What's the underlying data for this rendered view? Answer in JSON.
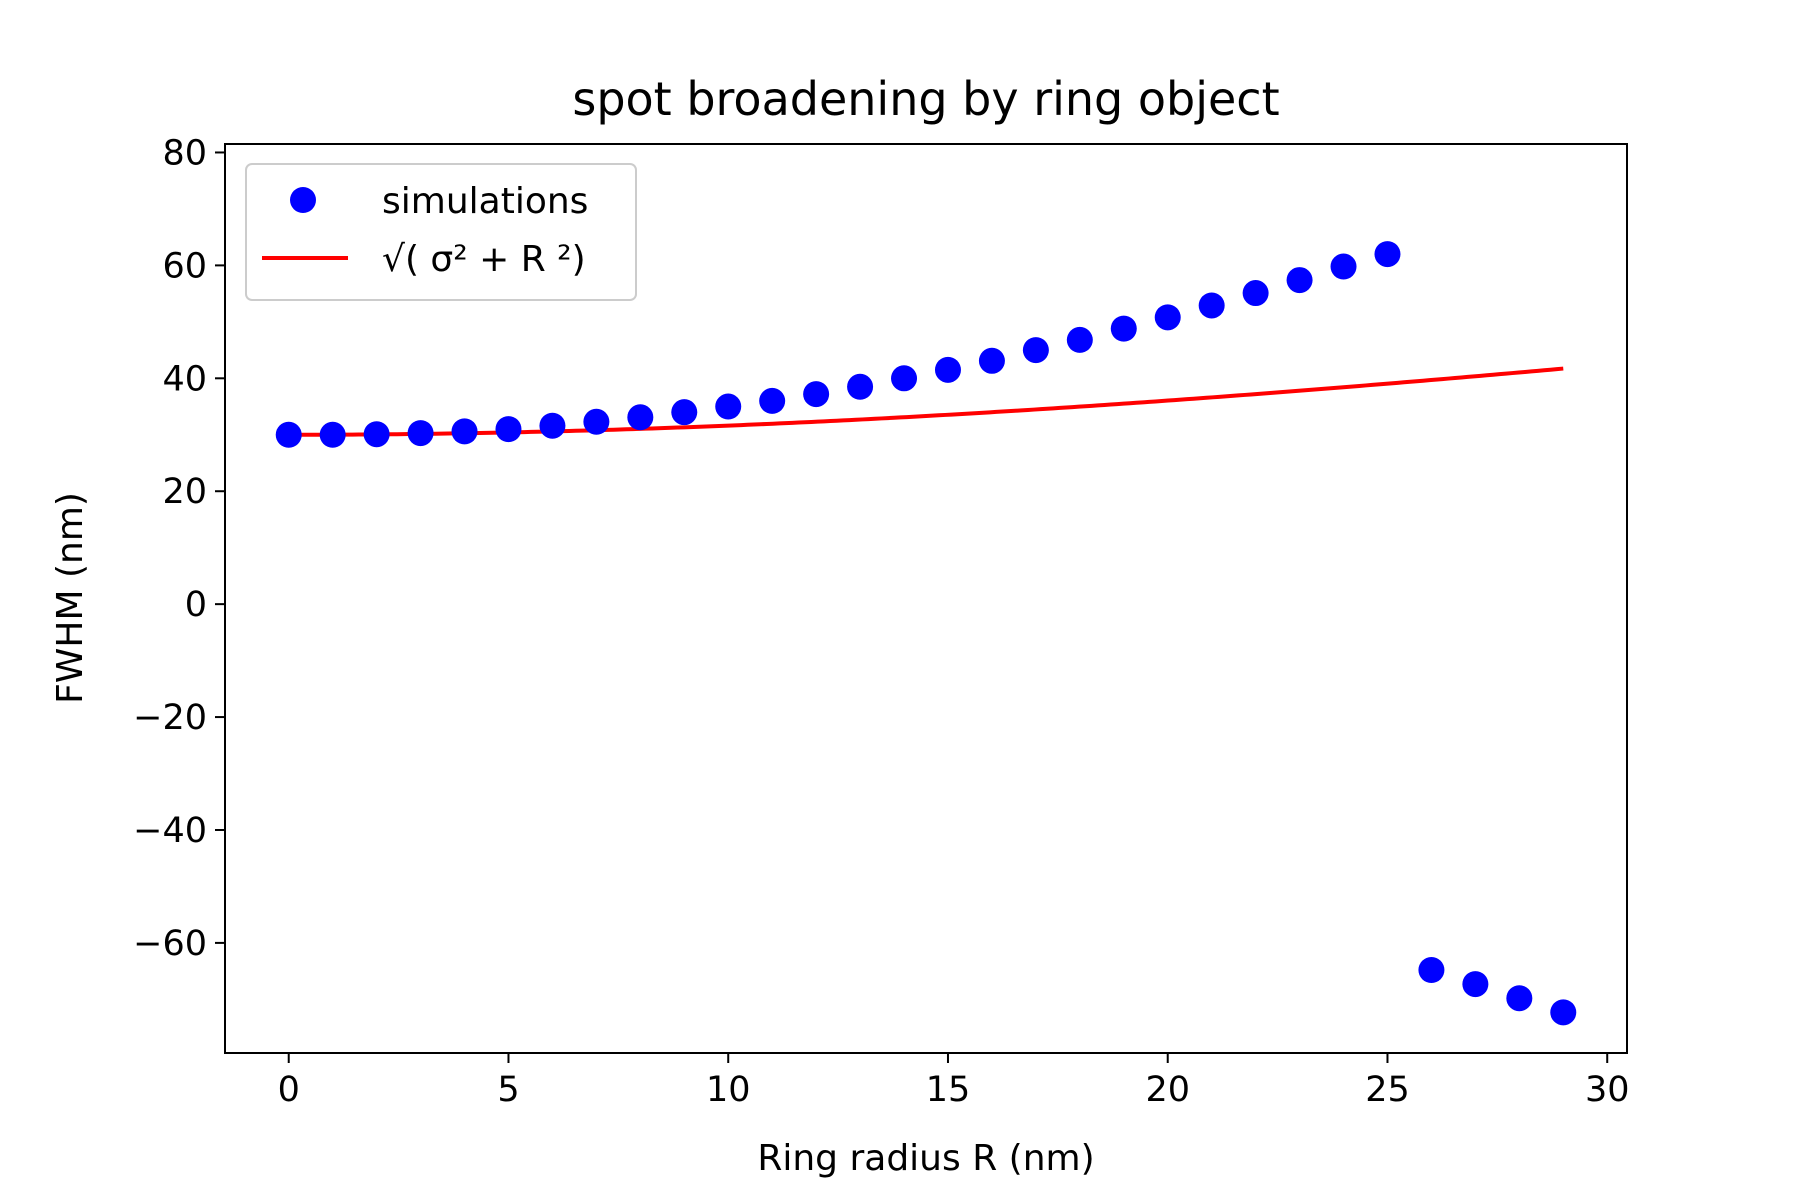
{
  "chart_data": {
    "type": "scatter",
    "title": "spot broadening by ring object",
    "xlabel": "Ring radius R (nm)",
    "ylabel": "FWHM (nm)",
    "xlim": [
      -1.45,
      30.45
    ],
    "ylim": [
      -79.5,
      81.5
    ],
    "xticks": [
      "0",
      "5",
      "10",
      "15",
      "20",
      "25",
      "30"
    ],
    "xtick_values": [
      0,
      5,
      10,
      15,
      20,
      25,
      30
    ],
    "yticks": [
      "80",
      "60",
      "40",
      "20",
      "0",
      "−20",
      "−40",
      "−60"
    ],
    "ytick_values": [
      80,
      60,
      40,
      20,
      0,
      -20,
      -40,
      -60
    ],
    "grid": false,
    "legend_position": "top-left",
    "colors": {
      "simulations": "#0000ff",
      "fit": "#ff0000"
    },
    "series": [
      {
        "name": "simulations",
        "kind": "scatter",
        "color": "#0000ff",
        "x": [
          0,
          1,
          2,
          3,
          4,
          5,
          6,
          7,
          8,
          9,
          10,
          11,
          12,
          13,
          14,
          15,
          16,
          17,
          18,
          19,
          20,
          21,
          22,
          23,
          24,
          25,
          26,
          27,
          28,
          29
        ],
        "y": [
          30.0,
          30.0,
          30.1,
          30.3,
          30.6,
          31.0,
          31.6,
          32.3,
          33.1,
          34.0,
          35.0,
          36.0,
          37.2,
          38.5,
          40.0,
          41.5,
          43.1,
          45.0,
          46.8,
          48.8,
          50.8,
          52.9,
          55.1,
          57.4,
          59.8,
          62.0,
          -64.8,
          -67.3,
          -69.8,
          -72.3
        ]
      },
      {
        "name": "√( σ² + R ²)",
        "kind": "line",
        "color": "#ff0000",
        "sigma": 30,
        "x_range": [
          0,
          29
        ]
      }
    ]
  }
}
